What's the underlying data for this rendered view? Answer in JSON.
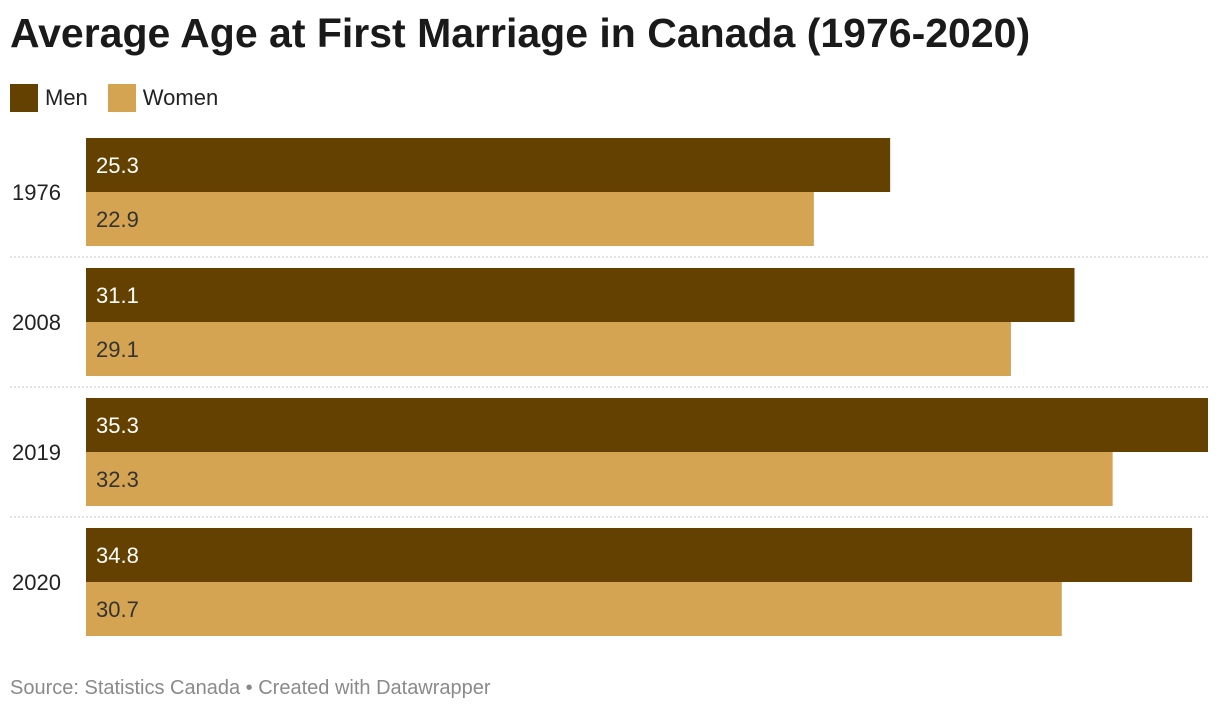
{
  "chart_data": {
    "type": "bar",
    "orientation": "horizontal",
    "title": "Average Age at First Marriage in Canada (1976-2020)",
    "categories": [
      "1976",
      "2008",
      "2019",
      "2020"
    ],
    "series": [
      {
        "name": "Men",
        "color": "#654100",
        "values": [
          25.3,
          31.1,
          35.3,
          34.8
        ]
      },
      {
        "name": "Women",
        "color": "#d4a453",
        "values": [
          22.9,
          29.1,
          32.3,
          30.7
        ]
      }
    ],
    "xlim": [
      0,
      35.3
    ],
    "grid": false,
    "legend_position": "top-left",
    "source": "Source: Statistics Canada • Created with Datawrapper"
  }
}
